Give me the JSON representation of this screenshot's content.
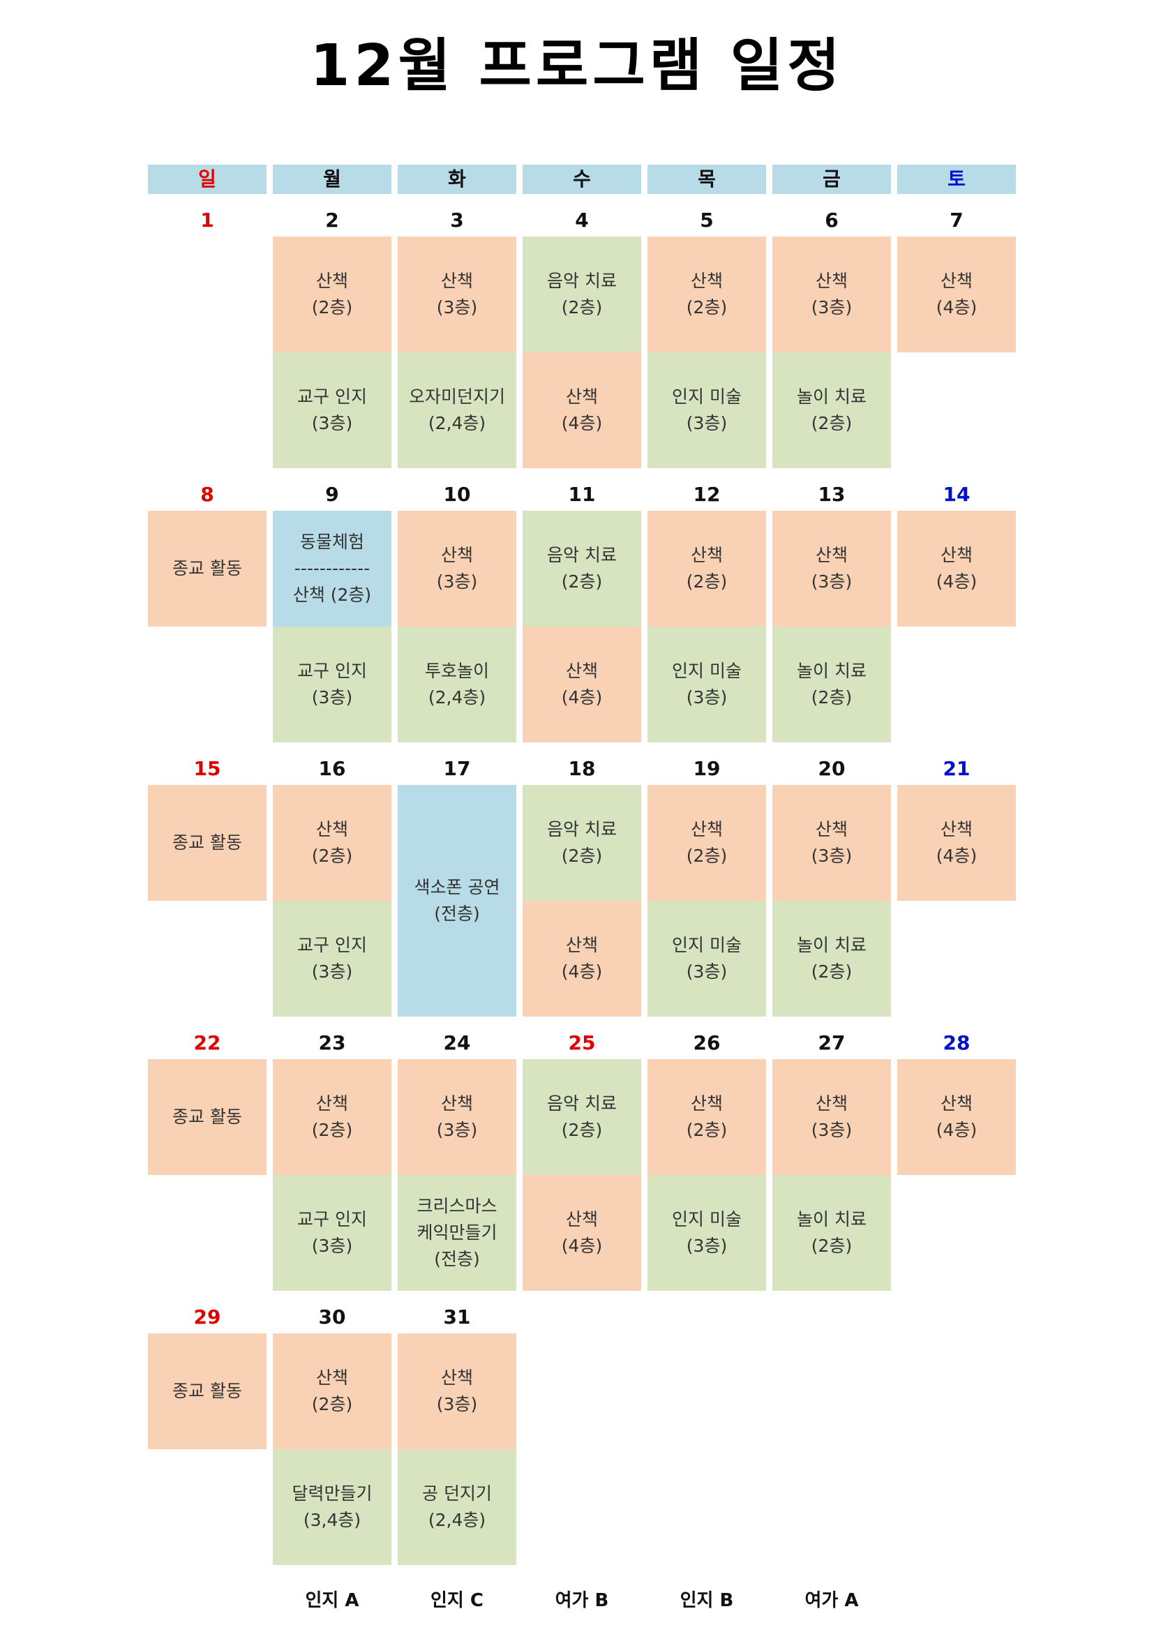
{
  "title": "12월 프로그램 일정",
  "weekdays": [
    "일",
    "월",
    "화",
    "수",
    "목",
    "금",
    "토"
  ],
  "weeks": [
    {
      "dates": [
        "1",
        "2",
        "3",
        "4",
        "5",
        "6",
        "7"
      ],
      "date_colors": [
        "red",
        "",
        "",
        "",
        "",
        "",
        ""
      ],
      "slots": [
        [
          null,
          null
        ],
        [
          {
            "text": "산책\n(2층)",
            "color": "orange"
          },
          {
            "text": "교구 인지\n(3층)",
            "color": "green"
          }
        ],
        [
          {
            "text": "산책\n(3층)",
            "color": "orange"
          },
          {
            "text": "오자미던지기\n(2,4층)",
            "color": "green"
          }
        ],
        [
          {
            "text": "음악 치료\n(2층)",
            "color": "green"
          },
          {
            "text": "산책\n(4층)",
            "color": "orange"
          }
        ],
        [
          {
            "text": "산책\n(2층)",
            "color": "orange"
          },
          {
            "text": "인지 미술\n(3층)",
            "color": "green"
          }
        ],
        [
          {
            "text": "산책\n(3층)",
            "color": "orange"
          },
          {
            "text": "놀이 치료\n(2층)",
            "color": "green"
          }
        ],
        [
          {
            "text": "산책\n(4층)",
            "color": "orange"
          },
          null
        ]
      ]
    },
    {
      "dates": [
        "8",
        "9",
        "10",
        "11",
        "12",
        "13",
        "14"
      ],
      "date_colors": [
        "red",
        "",
        "",
        "",
        "",
        "",
        "blue"
      ],
      "slots": [
        [
          {
            "text": "종교 활동",
            "color": "orange"
          },
          null
        ],
        [
          {
            "text": "동물체험\n------------\n산책 (2층)",
            "color": "blue"
          },
          {
            "text": "교구 인지\n(3층)",
            "color": "green"
          }
        ],
        [
          {
            "text": "산책\n(3층)",
            "color": "orange"
          },
          {
            "text": "투호놀이\n(2,4층)",
            "color": "green"
          }
        ],
        [
          {
            "text": "음악 치료\n(2층)",
            "color": "green"
          },
          {
            "text": "산책\n(4층)",
            "color": "orange"
          }
        ],
        [
          {
            "text": "산책\n(2층)",
            "color": "orange"
          },
          {
            "text": "인지 미술\n(3층)",
            "color": "green"
          }
        ],
        [
          {
            "text": "산책\n(3층)",
            "color": "orange"
          },
          {
            "text": "놀이 치료\n(2층)",
            "color": "green"
          }
        ],
        [
          {
            "text": "산책\n(4층)",
            "color": "orange"
          },
          null
        ]
      ]
    },
    {
      "dates": [
        "15",
        "16",
        "17",
        "18",
        "19",
        "20",
        "21"
      ],
      "date_colors": [
        "red",
        "",
        "",
        "",
        "",
        "",
        "blue"
      ],
      "slots": [
        [
          {
            "text": "종교 활동",
            "color": "orange"
          },
          null
        ],
        [
          {
            "text": "산책\n(2층)",
            "color": "orange"
          },
          {
            "text": "교구 인지\n(3층)",
            "color": "green"
          }
        ],
        [
          {
            "text": "색소폰 공연\n(전층)",
            "color": "blue",
            "span": 2
          },
          null
        ],
        [
          {
            "text": "음악 치료\n(2층)",
            "color": "green"
          },
          {
            "text": "산책\n(4층)",
            "color": "orange"
          }
        ],
        [
          {
            "text": "산책\n(2층)",
            "color": "orange"
          },
          {
            "text": "인지 미술\n(3층)",
            "color": "green"
          }
        ],
        [
          {
            "text": "산책\n(3층)",
            "color": "orange"
          },
          {
            "text": "놀이 치료\n(2층)",
            "color": "green"
          }
        ],
        [
          {
            "text": "산책\n(4층)",
            "color": "orange"
          },
          null
        ]
      ]
    },
    {
      "dates": [
        "22",
        "23",
        "24",
        "25",
        "26",
        "27",
        "28"
      ],
      "date_colors": [
        "red",
        "",
        "",
        "red",
        "",
        "",
        "blue"
      ],
      "slots": [
        [
          {
            "text": "종교 활동",
            "color": "orange"
          },
          null
        ],
        [
          {
            "text": "산책\n(2층)",
            "color": "orange"
          },
          {
            "text": "교구 인지\n(3층)",
            "color": "green"
          }
        ],
        [
          {
            "text": "산책\n(3층)",
            "color": "orange"
          },
          {
            "text": "크리스마스\n케익만들기\n(전층)",
            "color": "green"
          }
        ],
        [
          {
            "text": "음악 치료\n(2층)",
            "color": "green"
          },
          {
            "text": "산책\n(4층)",
            "color": "orange"
          }
        ],
        [
          {
            "text": "산책\n(2층)",
            "color": "orange"
          },
          {
            "text": "인지 미술\n(3층)",
            "color": "green"
          }
        ],
        [
          {
            "text": "산책\n(3층)",
            "color": "orange"
          },
          {
            "text": "놀이 치료\n(2층)",
            "color": "green"
          }
        ],
        [
          {
            "text": "산책\n(4층)",
            "color": "orange"
          },
          null
        ]
      ]
    },
    {
      "dates": [
        "29",
        "30",
        "31",
        "",
        "",
        "",
        ""
      ],
      "date_colors": [
        "red",
        "",
        "",
        "",
        "",
        "",
        ""
      ],
      "slots": [
        [
          {
            "text": "종교 활동",
            "color": "orange"
          },
          null
        ],
        [
          {
            "text": "산책\n(2층)",
            "color": "orange"
          },
          {
            "text": "달력만들기\n(3,4층)",
            "color": "green"
          }
        ],
        [
          {
            "text": "산책\n(3층)",
            "color": "orange"
          },
          {
            "text": "공 던지기\n(2,4층)",
            "color": "green"
          }
        ],
        [
          null,
          null
        ],
        [
          null,
          null
        ],
        [
          null,
          null
        ],
        [
          null,
          null
        ]
      ]
    }
  ],
  "footer_labels": [
    "",
    "인지 A",
    "인지 C",
    "여가 B",
    "인지 B",
    "여가 A",
    ""
  ],
  "colors": {
    "orange": "#f9d2b6",
    "green": "#d7e4bf",
    "blue": "#b8dbe8",
    "sunday_red": "#e00000",
    "saturday_blue": "#0010d0"
  }
}
